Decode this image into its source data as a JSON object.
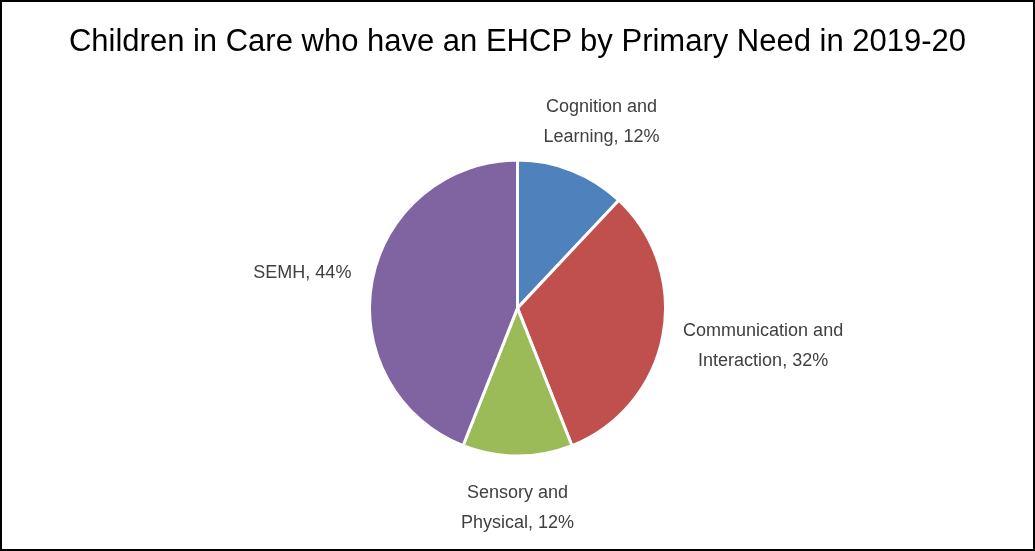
{
  "chart_data": {
    "type": "pie",
    "title": "Children in Care who have an EHCP by Primary Need in 2019-20",
    "categories": [
      "Cognition and Learning",
      "Communication and Interaction",
      "Sensory and Physical",
      "SEMH"
    ],
    "values": [
      12,
      32,
      12,
      44
    ],
    "value_labels": [
      "12%",
      "32%",
      "12%",
      "44%"
    ],
    "colors": [
      "#4f81bd",
      "#c0504d",
      "#9bbb59",
      "#8064a2"
    ],
    "legend": false
  }
}
